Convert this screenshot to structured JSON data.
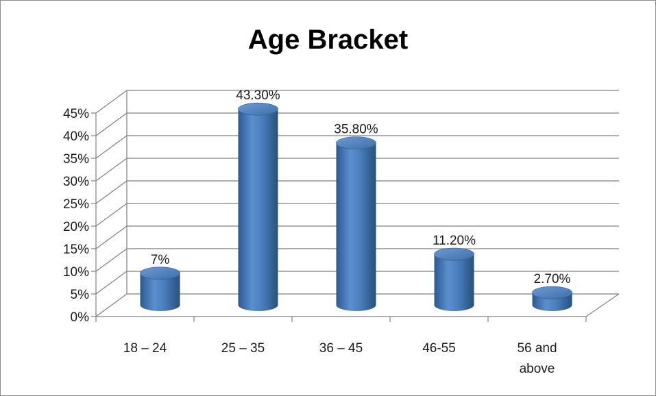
{
  "chart_data": {
    "type": "bar",
    "style": "3d-cylinder",
    "title": "Age Bracket",
    "xlabel": "",
    "ylabel": "",
    "categories": [
      "18 – 24",
      "25 – 35",
      "36 – 45",
      "46-55",
      "56 and above"
    ],
    "category_lines": [
      [
        "18 – 24"
      ],
      [
        "25 – 35"
      ],
      [
        "36 – 45"
      ],
      [
        "46-55"
      ],
      [
        "56 and",
        "above"
      ]
    ],
    "values": [
      7,
      43.3,
      35.8,
      11.2,
      2.7
    ],
    "data_labels": [
      "7%",
      "43.30%",
      "35.80%",
      "11.20%",
      "2.70%"
    ],
    "ylim": [
      0,
      45
    ],
    "yticks": [
      "0%",
      "5%",
      "10%",
      "15%",
      "20%",
      "25%",
      "30%",
      "35%",
      "40%",
      "45%"
    ],
    "grid": true,
    "legend": "none",
    "colors": {
      "bar": "#4a7ebb",
      "bar_dark": "#2c5a8f",
      "bar_light": "#7aa3d8",
      "grid": "#808080"
    }
  }
}
